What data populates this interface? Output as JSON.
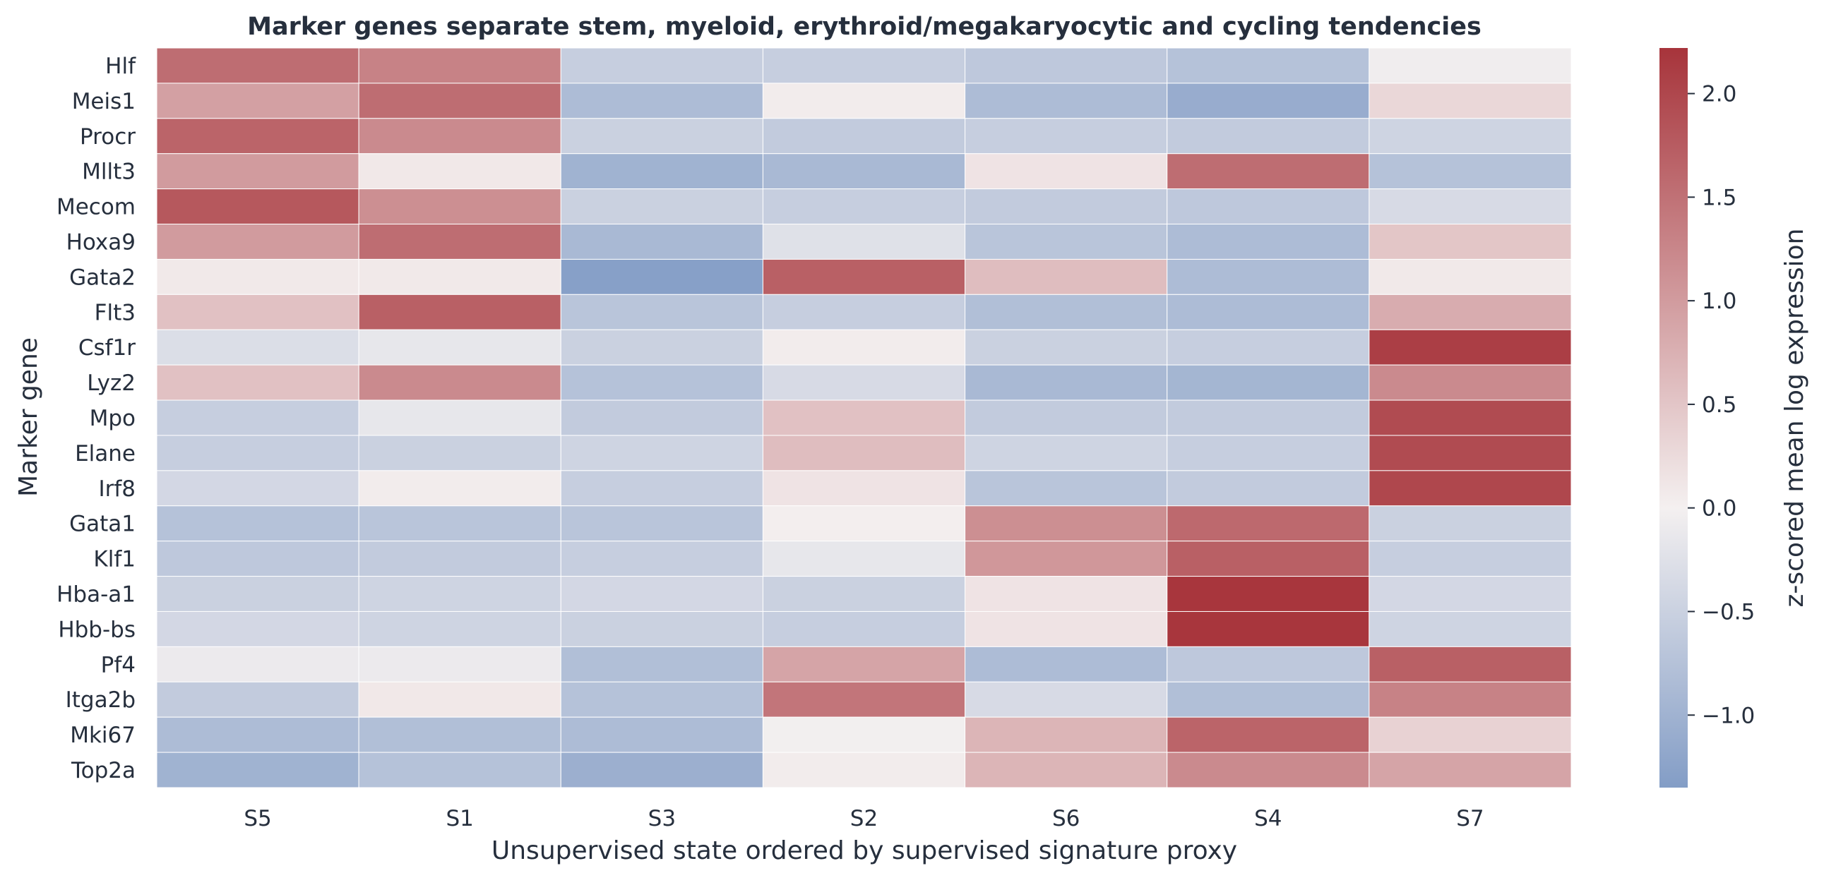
{
  "chart_data": {
    "type": "heatmap",
    "title": "Marker genes separate stem, myeloid, erythroid/megakaryocytic and cycling tendencies",
    "xlabel": "Unsupervised state ordered by supervised signature proxy",
    "ylabel": "Marker gene",
    "x_categories": [
      "S5",
      "S1",
      "S3",
      "S2",
      "S6",
      "S4",
      "S7"
    ],
    "y_categories": [
      "Hlf",
      "Meis1",
      "Procr",
      "Mllt3",
      "Mecom",
      "Hoxa9",
      "Gata2",
      "Flt3",
      "Csf1r",
      "Lyz2",
      "Mpo",
      "Elane",
      "Irf8",
      "Gata1",
      "Klf1",
      "Hba-a1",
      "Hbb-bs",
      "Pf4",
      "Itga2b",
      "Mki67",
      "Top2a"
    ],
    "values": [
      [
        1.55,
        1.3,
        -0.55,
        -0.55,
        -0.65,
        -0.75,
        -0.05
      ],
      [
        0.95,
        1.55,
        -0.85,
        0.05,
        -0.85,
        -1.1,
        0.3
      ],
      [
        1.65,
        1.2,
        -0.5,
        -0.6,
        -0.55,
        -0.6,
        -0.45
      ],
      [
        1.0,
        0.1,
        -1.0,
        -0.9,
        0.15,
        1.55,
        -0.75
      ],
      [
        1.8,
        1.15,
        -0.5,
        -0.55,
        -0.6,
        -0.65,
        -0.35
      ],
      [
        1.0,
        1.55,
        -0.9,
        -0.25,
        -0.7,
        -0.85,
        0.5
      ],
      [
        0.08,
        0.08,
        -1.3,
        1.7,
        0.6,
        -0.85,
        0.08
      ],
      [
        0.55,
        1.7,
        -0.7,
        -0.55,
        -0.8,
        -0.85,
        0.8
      ],
      [
        -0.3,
        -0.15,
        -0.5,
        0.05,
        -0.5,
        -0.55,
        2.1
      ],
      [
        0.55,
        1.2,
        -0.75,
        -0.35,
        -0.9,
        -0.95,
        1.2
      ],
      [
        -0.55,
        -0.15,
        -0.6,
        0.55,
        -0.6,
        -0.6,
        1.95
      ],
      [
        -0.55,
        -0.5,
        -0.45,
        0.6,
        -0.45,
        -0.55,
        1.95
      ],
      [
        -0.4,
        0.05,
        -0.55,
        0.15,
        -0.7,
        -0.6,
        2.0
      ],
      [
        -0.75,
        -0.7,
        -0.7,
        0.02,
        1.15,
        1.6,
        -0.5
      ],
      [
        -0.65,
        -0.6,
        -0.55,
        -0.15,
        1.05,
        1.7,
        -0.55
      ],
      [
        -0.5,
        -0.45,
        -0.4,
        -0.5,
        0.15,
        2.2,
        -0.4
      ],
      [
        -0.4,
        -0.45,
        -0.5,
        -0.55,
        0.15,
        2.2,
        -0.45
      ],
      [
        -0.1,
        -0.1,
        -0.8,
        0.9,
        -0.85,
        -0.65,
        1.7
      ],
      [
        -0.6,
        0.1,
        -0.75,
        1.45,
        -0.35,
        -0.8,
        1.3
      ],
      [
        -0.85,
        -0.8,
        -0.85,
        -0.02,
        0.7,
        1.65,
        0.35
      ],
      [
        -1.0,
        -0.75,
        -1.05,
        0.05,
        0.7,
        1.2,
        0.9
      ]
    ],
    "colorbar": {
      "label": "z-scored mean log expression",
      "min": -1.35,
      "max": 2.22,
      "center": 0,
      "ticks": [
        -1.0,
        -0.5,
        0.0,
        0.5,
        1.0,
        1.5,
        2.0
      ],
      "tick_labels": [
        "−1.0",
        "−0.5",
        "0.0",
        "0.5",
        "1.0",
        "1.5",
        "2.0"
      ],
      "colors": {
        "low": "#839dc6",
        "mid": "#f4f0f0",
        "high": "#a7343b"
      }
    }
  }
}
